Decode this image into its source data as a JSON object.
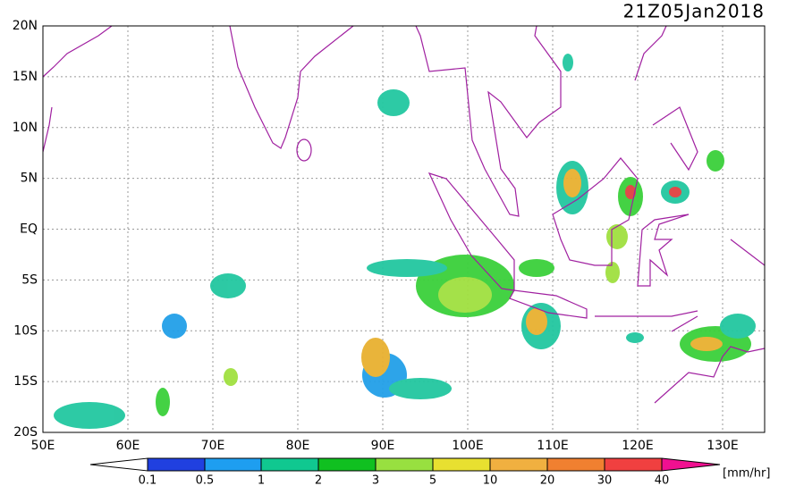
{
  "title": "21Z05Jan2018",
  "lat_labels": [
    "20N",
    "15N",
    "10N",
    "5N",
    "EQ",
    "5S",
    "10S",
    "15S",
    "20S"
  ],
  "lon_labels": [
    "50E",
    "60E",
    "70E",
    "80E",
    "90E",
    "100E",
    "110E",
    "120E",
    "130E"
  ],
  "colorbar": {
    "labels": [
      "0.1",
      "0.5",
      "1",
      "2",
      "3",
      "5",
      "10",
      "20",
      "30",
      "40"
    ],
    "unit": "[mm/hr]"
  }
}
